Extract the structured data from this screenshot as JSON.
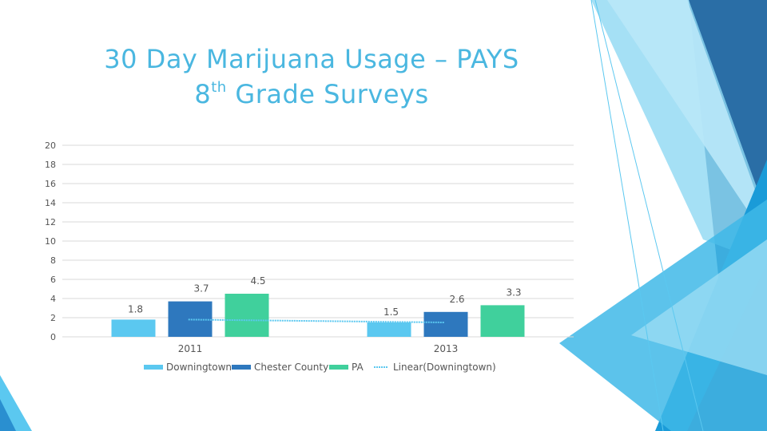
{
  "slide": {
    "title_line1": "30 Day Marijuana Usage – PAYS",
    "title_line2_num": "8",
    "title_line2_sup": "th",
    "title_line2_rest": " Grade Surveys"
  },
  "chart_data": {
    "type": "bar",
    "categories": [
      "2011",
      "2013"
    ],
    "series": [
      {
        "name": "Downingtown",
        "values": [
          1.8,
          1.5
        ],
        "color": "#5bc8f0"
      },
      {
        "name": "Chester County",
        "values": [
          3.7,
          2.6
        ],
        "color": "#2e78be"
      },
      {
        "name": "PA",
        "values": [
          4.5,
          3.3
        ],
        "color": "#40d09c"
      }
    ],
    "trendline": {
      "name": "Linear(Downingtown)",
      "series": "Downingtown",
      "values": [
        1.8,
        1.5
      ],
      "color": "#5bc8f0"
    },
    "ylim": [
      0,
      20
    ],
    "yticks": [
      0,
      2,
      4,
      6,
      8,
      10,
      12,
      14,
      16,
      18,
      20
    ],
    "grid": true,
    "legend": "bottom"
  }
}
